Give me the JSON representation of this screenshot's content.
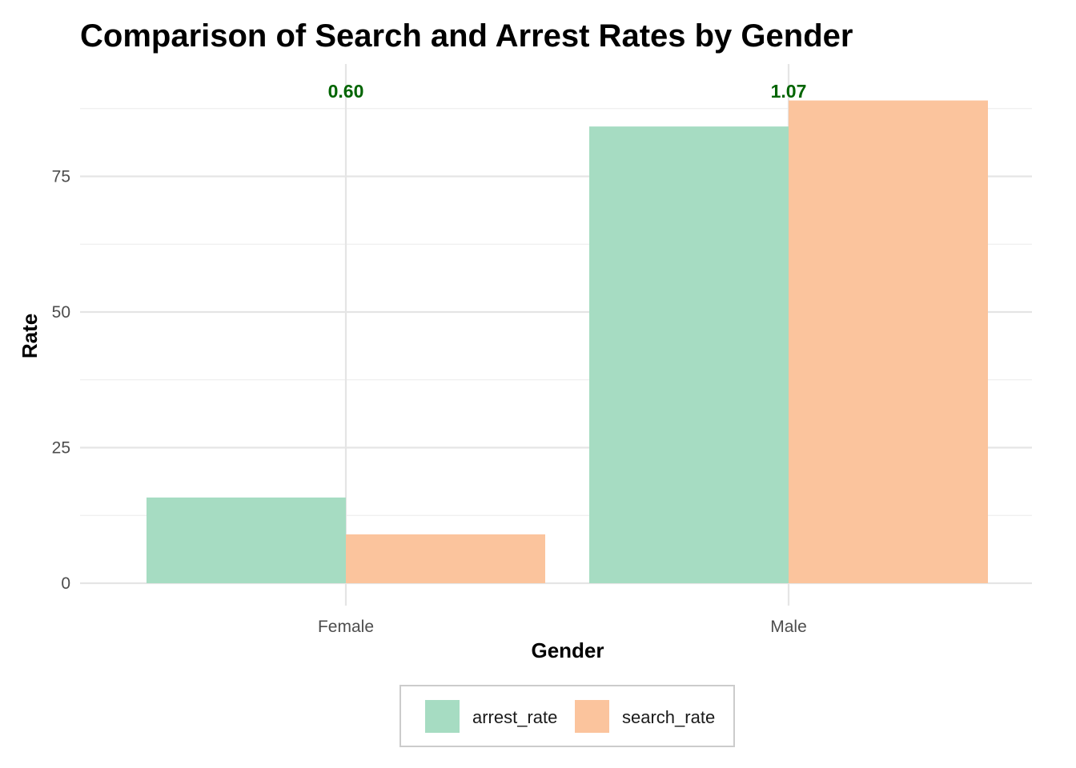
{
  "chart_data": {
    "type": "bar",
    "title": "Comparison of Search and Arrest Rates by Gender",
    "xlabel": "Gender",
    "ylabel": "Rate",
    "categories": [
      "Female",
      "Male"
    ],
    "series": [
      {
        "name": "arrest_rate",
        "color": "#a6dcc2",
        "values": [
          15.8,
          84.2
        ]
      },
      {
        "name": "search_rate",
        "color": "#fbc49d",
        "values": [
          9.0,
          89.0
        ]
      }
    ],
    "annotations": [
      {
        "category": "Female",
        "text": "0.60"
      },
      {
        "category": "Male",
        "text": "1.07"
      }
    ],
    "annotation_color": "#006400",
    "ylim": [
      0,
      91
    ],
    "yticks": [
      0,
      25,
      50,
      75
    ],
    "grid": true,
    "legend_position": "bottom"
  }
}
